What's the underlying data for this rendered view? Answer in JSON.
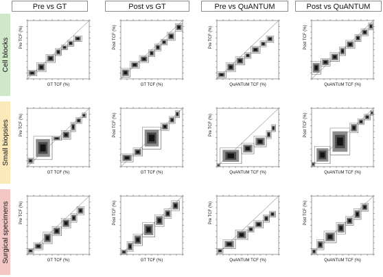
{
  "column_headers": [
    "Pre vs GT",
    "Post vs GT",
    "Pre vs QuANTUM",
    "Post vs QuANTUM"
  ],
  "row_labels": [
    "Cell blocks",
    "Small biopsies",
    "Surgical specimens"
  ],
  "colors": {
    "cell_blocks": "#cfe8c8",
    "small_biopsies": "#fbe9b9",
    "surgical_specimens": "#f3c7c4",
    "box_dark": "#141414",
    "box_mid": "#4a4a4a",
    "box_light": "#8c8c8c",
    "diagonal": "#9a9a9a",
    "step_line": "#6f6f6f"
  },
  "chart_data": [
    {
      "type": "box-diagonal",
      "row": "Cell blocks",
      "column": "Pre vs GT",
      "xlabel": "GT TCF (%)",
      "ylabel": "Pre TCF (%)",
      "xlim": [
        0,
        100
      ],
      "ylim": [
        0,
        100
      ],
      "boxes": [
        [
          0,
          15,
          5,
          15
        ],
        [
          15,
          30,
          12,
          28
        ],
        [
          30,
          45,
          28,
          42
        ],
        [
          45,
          55,
          40,
          52
        ],
        [
          55,
          65,
          50,
          58
        ],
        [
          65,
          75,
          56,
          66
        ],
        [
          75,
          88,
          64,
          74
        ]
      ]
    },
    {
      "type": "box-diagonal",
      "row": "Cell blocks",
      "column": "Post vs GT",
      "xlabel": "GT TCF (%)",
      "ylabel": "Post TCF (%)",
      "xlim": [
        0,
        100
      ],
      "ylim": [
        0,
        100
      ],
      "boxes": [
        [
          0,
          15,
          3,
          18
        ],
        [
          15,
          30,
          18,
          30
        ],
        [
          30,
          45,
          28,
          40
        ],
        [
          45,
          55,
          38,
          50
        ],
        [
          55,
          65,
          48,
          60
        ],
        [
          65,
          75,
          58,
          68
        ],
        [
          75,
          88,
          66,
          80
        ],
        [
          88,
          100,
          82,
          95
        ]
      ]
    },
    {
      "type": "box-diagonal",
      "row": "Cell blocks",
      "column": "Pre vs QuANTUM",
      "xlabel": "QuANTUM TCF (%)",
      "ylabel": "Pre TCF (%)",
      "xlim": [
        0,
        100
      ],
      "ylim": [
        0,
        100
      ],
      "boxes": [
        [
          0,
          15,
          2,
          12
        ],
        [
          15,
          30,
          12,
          28
        ],
        [
          30,
          45,
          24,
          38
        ],
        [
          45,
          55,
          35,
          45
        ],
        [
          55,
          70,
          44,
          56
        ],
        [
          70,
          80,
          55,
          65
        ],
        [
          80,
          92,
          63,
          74
        ]
      ]
    },
    {
      "type": "box-diagonal",
      "row": "Cell blocks",
      "column": "Post vs QuANTUM",
      "xlabel": "QuANTUM TCF (%)",
      "ylabel": "Post TCF (%)",
      "xlim": [
        0,
        100
      ],
      "ylim": [
        0,
        100
      ],
      "boxes": [
        [
          0,
          15,
          8,
          30
        ],
        [
          15,
          30,
          22,
          35
        ],
        [
          30,
          45,
          30,
          45
        ],
        [
          45,
          55,
          40,
          55
        ],
        [
          55,
          70,
          52,
          66
        ],
        [
          70,
          80,
          64,
          76
        ],
        [
          80,
          92,
          74,
          86
        ],
        [
          92,
          100,
          84,
          96
        ]
      ]
    },
    {
      "type": "box-diagonal",
      "row": "Small biopsies",
      "column": "Pre vs GT",
      "xlabel": "GT TCF (%)",
      "ylabel": "Pre TCF (%)",
      "xlim": [
        0,
        100
      ],
      "ylim": [
        0,
        100
      ],
      "boxes": [
        [
          0,
          10,
          5,
          15
        ],
        [
          10,
          40,
          12,
          52
        ],
        [
          40,
          55,
          45,
          52
        ],
        [
          55,
          70,
          47,
          62
        ],
        [
          70,
          78,
          60,
          76
        ],
        [
          78,
          88,
          74,
          84
        ],
        [
          88,
          95,
          84,
          92
        ]
      ]
    },
    {
      "type": "box-diagonal",
      "row": "Small biopsies",
      "column": "Post vs GT",
      "xlabel": "GT TCF (%)",
      "ylabel": "Post TCF (%)",
      "xlim": [
        0,
        100
      ],
      "ylim": [
        0,
        100
      ],
      "boxes": [
        [
          0,
          20,
          8,
          22
        ],
        [
          20,
          35,
          18,
          32
        ],
        [
          35,
          65,
          30,
          68
        ],
        [
          65,
          78,
          62,
          75
        ],
        [
          78,
          88,
          74,
          86
        ],
        [
          88,
          95,
          84,
          96
        ]
      ]
    },
    {
      "type": "box-diagonal",
      "row": "Small biopsies",
      "column": "Pre vs QuANTUM",
      "xlabel": "QuANTUM TCF (%)",
      "ylabel": "Pre TCF (%)",
      "xlim": [
        0,
        100
      ],
      "ylim": [
        0,
        100
      ],
      "boxes": [
        [
          0,
          5,
          0,
          5
        ],
        [
          5,
          40,
          5,
          32
        ],
        [
          40,
          60,
          22,
          40
        ],
        [
          60,
          80,
          34,
          52
        ],
        [
          80,
          88,
          48,
          62
        ],
        [
          88,
          95,
          60,
          72
        ]
      ]
    },
    {
      "type": "box-diagonal",
      "row": "Small biopsies",
      "column": "Post vs QuANTUM",
      "xlabel": "QuANTUM TCF (%)",
      "ylabel": "Post TCF (%)",
      "xlim": [
        0,
        100
      ],
      "ylim": [
        0,
        100
      ],
      "boxes": [
        [
          0,
          5,
          0,
          8
        ],
        [
          5,
          30,
          5,
          35
        ],
        [
          30,
          62,
          20,
          66
        ],
        [
          62,
          75,
          58,
          75
        ],
        [
          75,
          85,
          72,
          82
        ],
        [
          85,
          95,
          80,
          90
        ],
        [
          95,
          100,
          88,
          96
        ]
      ]
    },
    {
      "type": "box-diagonal",
      "row": "Surgical specimens",
      "column": "Pre vs GT",
      "xlabel": "GT TCF (%)",
      "ylabel": "Pre TCF (%)",
      "xlim": [
        0,
        100
      ],
      "ylim": [
        0,
        100
      ],
      "boxes": [
        [
          0,
          10,
          2,
          10
        ],
        [
          10,
          25,
          8,
          20
        ],
        [
          25,
          40,
          18,
          38
        ],
        [
          40,
          55,
          32,
          48
        ],
        [
          55,
          70,
          45,
          62
        ],
        [
          70,
          80,
          55,
          70
        ],
        [
          80,
          92,
          68,
          82
        ]
      ]
    },
    {
      "type": "box-diagonal",
      "row": "Surgical specimens",
      "column": "Post vs GT",
      "xlabel": "GT TCF (%)",
      "ylabel": "Post TCF (%)",
      "xlim": [
        0,
        100
      ],
      "ylim": [
        0,
        100
      ],
      "boxes": [
        [
          0,
          10,
          0,
          8
        ],
        [
          10,
          20,
          5,
          22
        ],
        [
          20,
          35,
          15,
          35
        ],
        [
          35,
          55,
          30,
          55
        ],
        [
          55,
          70,
          48,
          68
        ],
        [
          70,
          82,
          62,
          78
        ],
        [
          82,
          95,
          75,
          92
        ]
      ]
    },
    {
      "type": "box-diagonal",
      "row": "Surgical specimens",
      "column": "Pre vs QuANTUM",
      "xlabel": "QuANTUM TCF (%)",
      "ylabel": "Pre TCF (%)",
      "xlim": [
        0,
        100
      ],
      "ylim": [
        0,
        100
      ],
      "boxes": [
        [
          0,
          10,
          2,
          10
        ],
        [
          10,
          30,
          10,
          25
        ],
        [
          30,
          50,
          25,
          42
        ],
        [
          50,
          60,
          38,
          48
        ],
        [
          60,
          75,
          45,
          58
        ],
        [
          75,
          85,
          55,
          68
        ],
        [
          85,
          95,
          64,
          74
        ]
      ]
    },
    {
      "type": "box-diagonal",
      "row": "Surgical specimens",
      "column": "Post vs QuANTUM",
      "xlabel": "QuANTUM TCF (%)",
      "ylabel": "Post TCF (%)",
      "xlim": [
        0,
        100
      ],
      "ylim": [
        0,
        100
      ],
      "boxes": [
        [
          0,
          8,
          0,
          10
        ],
        [
          8,
          20,
          8,
          25
        ],
        [
          20,
          40,
          20,
          40
        ],
        [
          40,
          55,
          35,
          55
        ],
        [
          55,
          68,
          50,
          65
        ],
        [
          68,
          80,
          60,
          78
        ],
        [
          80,
          92,
          74,
          88
        ]
      ]
    }
  ]
}
